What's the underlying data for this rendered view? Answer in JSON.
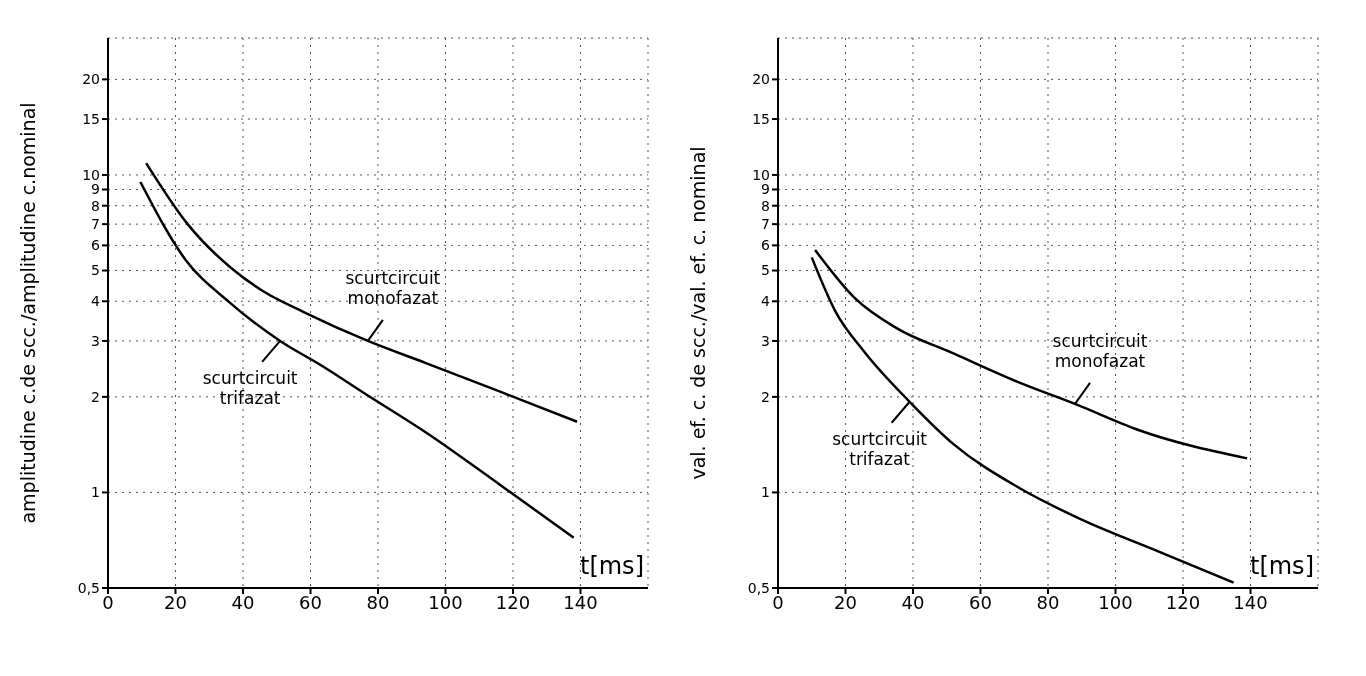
{
  "chart_data": [
    {
      "type": "line",
      "log": "y",
      "xlabel": "t[ms]",
      "ylabel": "amplitudine c.de scc./amplitudine c.nominal",
      "xlim": [
        0,
        160
      ],
      "xticks": [
        0,
        20,
        40,
        60,
        80,
        100,
        120,
        {
          "value": 140,
          "label": "140"
        }
      ],
      "ylim": [
        0.5,
        27
      ],
      "yticks": [
        {
          "value": 0.5,
          "label": "0,5"
        },
        1,
        2,
        3,
        4,
        5,
        6,
        7,
        8,
        9,
        10,
        15,
        20
      ],
      "grid": true,
      "marker": "none",
      "line_style": "solid",
      "series": [
        {
          "name": "scurtcircuit monofazat",
          "color": "#000000",
          "x": [
            11.3,
            23.6,
            36.4,
            46,
            58,
            77,
            94,
            116,
            139
          ],
          "values": [
            10.9,
            7.0,
            5.1,
            4.3,
            3.7,
            3.0,
            2.56,
            2.08,
            1.67
          ]
        },
        {
          "name": "scurtcircuit trifazat",
          "color": "#000000",
          "x": [
            9.6,
            23,
            36,
            51,
            63,
            77,
            94,
            116,
            138
          ],
          "values": [
            9.5,
            5.4,
            3.97,
            3.0,
            2.52,
            2.02,
            1.55,
            1.06,
            0.72
          ]
        }
      ]
    },
    {
      "type": "line",
      "log": "y",
      "xlabel": "t[ms]",
      "ylabel": "val. ef. c. de scc./val. ef. c. nominal",
      "xlim": [
        0,
        160
      ],
      "xticks": [
        0,
        20,
        40,
        60,
        80,
        100,
        120,
        140
      ],
      "ylim": [
        0.5,
        27
      ],
      "yticks": [
        {
          "value": 0.5,
          "label": "0,5"
        },
        1,
        2,
        3,
        4,
        5,
        6,
        7,
        8,
        9,
        10,
        15,
        20
      ],
      "grid": true,
      "marker": "none",
      "line_style": "solid",
      "series": [
        {
          "name": "scurtcircuit monofazat",
          "color": "#000000",
          "x": [
            11,
            23,
            35,
            52,
            71,
            88,
            107,
            139
          ],
          "values": [
            5.8,
            4.07,
            3.3,
            2.74,
            2.23,
            1.9,
            1.57,
            1.28
          ]
        },
        {
          "name": "scurtcircuit trifazat",
          "color": "#000000",
          "x": [
            10,
            17,
            25.5,
            39,
            52,
            71,
            89,
            113,
            135
          ],
          "values": [
            5.5,
            3.72,
            2.78,
            1.93,
            1.42,
            1.04,
            0.83,
            0.65,
            0.52
          ]
        }
      ]
    }
  ]
}
